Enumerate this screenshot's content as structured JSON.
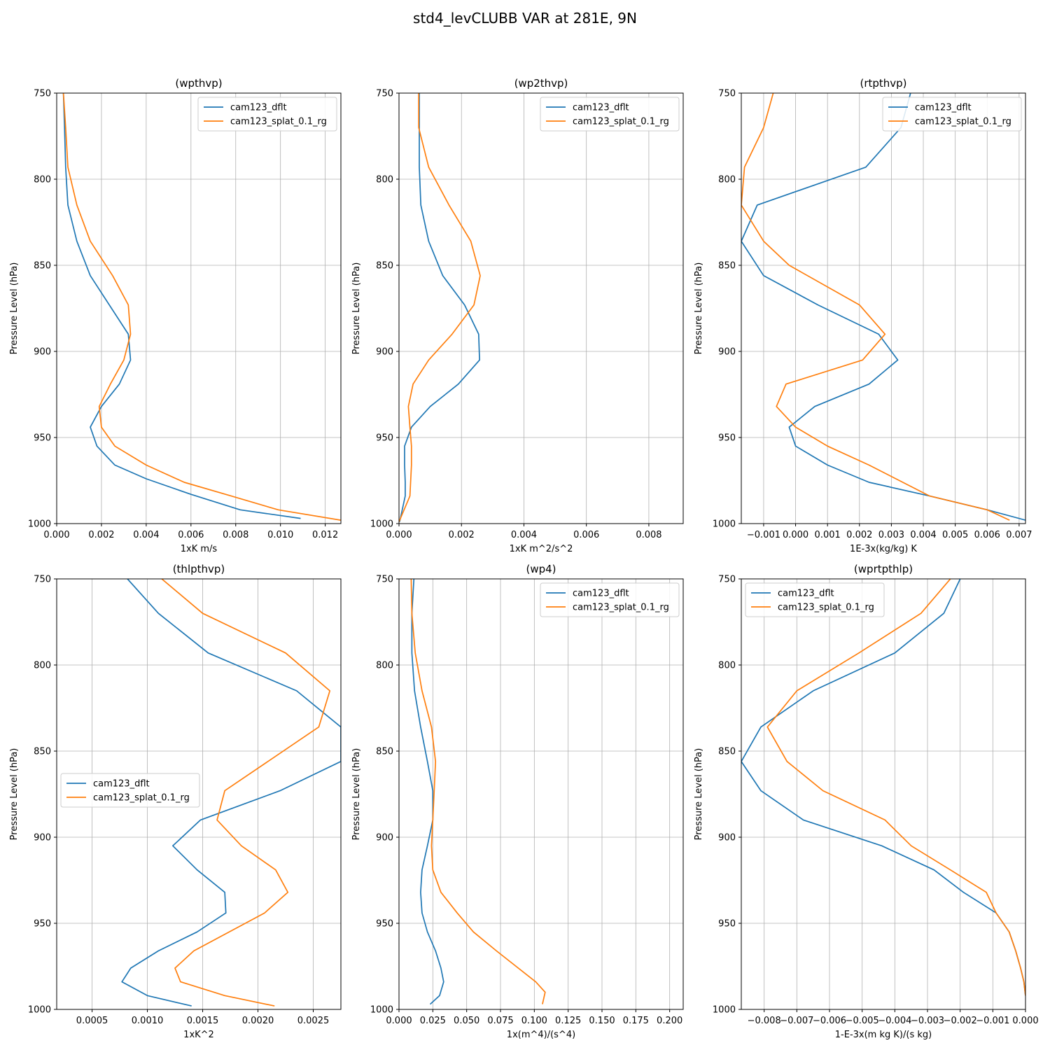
{
  "title": "std4_levCLUBB VAR at 281E, 9N",
  "colors": {
    "series0": "#1f77b4",
    "series1": "#ff7f0e",
    "grid": "#b0b0b0"
  },
  "chart_data": [
    {
      "type": "line",
      "title": "(wpthvp)",
      "xlabel": "1xK m/s",
      "ylabel": "Pressure Level (hPa)",
      "xlim": [
        0,
        0.0127
      ],
      "ylim": [
        1000,
        750
      ],
      "xticks": [
        0,
        0.002,
        0.004,
        0.006,
        0.008,
        0.01,
        0.012
      ],
      "xticklabels": [
        "0.000",
        "0.002",
        "0.004",
        "0.006",
        "0.008",
        "0.010",
        "0.012"
      ],
      "yticks": [
        750,
        800,
        850,
        900,
        950,
        1000
      ],
      "yticklabels": [
        "750",
        "800",
        "850",
        "900",
        "950",
        "1000"
      ],
      "grid": true,
      "legend": "upper right",
      "series": [
        {
          "name": "cam123_dflt",
          "x": [
            0.0003,
            0.00035,
            0.0004,
            0.0005,
            0.0009,
            0.0015,
            0.0032,
            0.0033,
            0.0028,
            0.002,
            0.0015,
            0.0018,
            0.0026,
            0.004,
            0.006,
            0.0082,
            0.0109
          ],
          "y": [
            750,
            770,
            793,
            815,
            836,
            856,
            890,
            905,
            919,
            932,
            944,
            955,
            966,
            974,
            983,
            992,
            997
          ]
        },
        {
          "name": "cam123_splat_0.1_rg",
          "x": [
            0.0003,
            0.0004,
            0.0005,
            0.0009,
            0.0015,
            0.0025,
            0.0032,
            0.0033,
            0.003,
            0.0024,
            0.0019,
            0.002,
            0.0026,
            0.004,
            0.0057,
            0.0078,
            0.0099,
            0.0127
          ],
          "y": [
            750,
            770,
            793,
            815,
            836,
            856,
            873,
            890,
            905,
            919,
            932,
            944,
            955,
            966,
            976,
            984,
            992,
            998
          ]
        }
      ]
    },
    {
      "type": "line",
      "title": "(wp2thvp)",
      "xlabel": "1xK m^2/s^2",
      "ylabel": "Pressure Level (hPa)",
      "xlim": [
        0,
        0.0091
      ],
      "ylim": [
        1000,
        750
      ],
      "xticks": [
        0,
        0.002,
        0.004,
        0.006,
        0.008
      ],
      "xticklabels": [
        "0.000",
        "0.002",
        "0.004",
        "0.006",
        "0.008"
      ],
      "yticks": [
        750,
        800,
        850,
        900,
        950,
        1000
      ],
      "yticklabels": [
        "750",
        "800",
        "850",
        "900",
        "950",
        "1000"
      ],
      "grid": true,
      "legend": "upper right",
      "series": [
        {
          "name": "cam123_dflt",
          "x": [
            0.00065,
            0.00065,
            0.00065,
            0.0007,
            0.00095,
            0.0014,
            0.0021,
            0.00255,
            0.00258,
            0.0019,
            0.001,
            0.0004,
            0.00018,
            0.00018,
            0.0002,
            0.0002,
            2e-05
          ],
          "y": [
            750,
            770,
            793,
            815,
            836,
            856,
            873,
            890,
            905,
            919,
            932,
            944,
            955,
            966,
            976,
            984,
            999
          ]
        },
        {
          "name": "cam123_splat_0.1_rg",
          "x": [
            0.00063,
            0.00063,
            0.00095,
            0.0016,
            0.0023,
            0.0026,
            0.0024,
            0.0017,
            0.00095,
            0.00045,
            0.0003,
            0.00035,
            0.0004,
            0.0004,
            0.00035,
            0.0
          ],
          "y": [
            750,
            770,
            793,
            815,
            836,
            856,
            873,
            890,
            905,
            919,
            932,
            944,
            955,
            966,
            984,
            999
          ]
        }
      ]
    },
    {
      "type": "line",
      "title": "(rtpthvp)",
      "xlabel": "1E-3x(kg/kg) K",
      "ylabel": "Pressure Level (hPa)",
      "xlim": [
        -0.0017,
        0.0072
      ],
      "ylim": [
        1000,
        750
      ],
      "xticks": [
        -0.001,
        0.0,
        0.001,
        0.002,
        0.003,
        0.004,
        0.005,
        0.006,
        0.007
      ],
      "xticklabels": [
        "−0.001",
        "0.000",
        "0.001",
        "0.002",
        "0.003",
        "0.004",
        "0.005",
        "0.006",
        "0.007"
      ],
      "yticks": [
        750,
        800,
        850,
        900,
        950,
        1000
      ],
      "yticklabels": [
        "750",
        "800",
        "850",
        "900",
        "950",
        "1000"
      ],
      "grid": true,
      "legend": "upper right",
      "series": [
        {
          "name": "cam123_dflt",
          "x": [
            0.0036,
            0.0033,
            0.0022,
            -0.0012,
            -0.0017,
            -0.001,
            0.0007,
            0.0026,
            0.0032,
            0.0023,
            0.0006,
            -0.0002,
            0.0,
            0.001,
            0.0023,
            0.0042,
            0.006,
            0.0072
          ],
          "y": [
            750,
            770,
            793,
            815,
            836,
            856,
            873,
            890,
            905,
            919,
            932,
            944,
            955,
            966,
            976,
            984,
            992,
            998
          ]
        },
        {
          "name": "cam123_splat_0.1_rg",
          "x": [
            -0.0007,
            -0.001,
            -0.0016,
            -0.0017,
            -0.001,
            -0.0002,
            0.002,
            0.0028,
            0.0021,
            -0.0003,
            -0.0006,
            0.0,
            0.001,
            0.0023,
            0.0042,
            0.006,
            0.0067
          ],
          "y": [
            750,
            770,
            793,
            815,
            836,
            850,
            873,
            890,
            905,
            919,
            932,
            944,
            955,
            966,
            984,
            992,
            998
          ]
        }
      ]
    },
    {
      "type": "line",
      "title": "(thlpthvp)",
      "xlabel": "1xK^2",
      "ylabel": "Pressure Level (hPa)",
      "xlim": [
        0.00018,
        0.00275
      ],
      "ylim": [
        1000,
        750
      ],
      "xticks": [
        0.0005,
        0.001,
        0.0015,
        0.002,
        0.0025
      ],
      "xticklabels": [
        "0.0005",
        "0.0010",
        "0.0015",
        "0.0020",
        "0.0025"
      ],
      "yticks": [
        750,
        800,
        850,
        900,
        950,
        1000
      ],
      "yticklabels": [
        "750",
        "800",
        "850",
        "900",
        "950",
        "1000"
      ],
      "grid": true,
      "legend": "center left",
      "series": [
        {
          "name": "cam123_dflt",
          "x": [
            0.00082,
            0.0011,
            0.00155,
            0.00235,
            0.00275,
            0.00275,
            0.0022,
            0.00148,
            0.00123,
            0.00145,
            0.0017,
            0.00171,
            0.00145,
            0.0011,
            0.00085,
            0.00077,
            0.001,
            0.0014
          ],
          "y": [
            750,
            770,
            793,
            815,
            836,
            856,
            873,
            890,
            905,
            919,
            932,
            944,
            955,
            966,
            976,
            984,
            992,
            998
          ]
        },
        {
          "name": "cam123_splat_0.1_rg",
          "x": [
            0.00113,
            0.0015,
            0.00225,
            0.00265,
            0.00255,
            0.0017,
            0.00163,
            0.00185,
            0.00216,
            0.00227,
            0.00206,
            0.00142,
            0.00125,
            0.0013,
            0.0017,
            0.00215
          ],
          "y": [
            750,
            770,
            793,
            815,
            836,
            873,
            890,
            905,
            919,
            932,
            944,
            966,
            976,
            984,
            992,
            998
          ]
        }
      ]
    },
    {
      "type": "line",
      "title": "(wp4)",
      "xlabel": "1x(m^4)/(s^4)",
      "ylabel": "Pressure Level (hPa)",
      "xlim": [
        0,
        0.21
      ],
      "ylim": [
        1000,
        750
      ],
      "xticks": [
        0,
        0.025,
        0.05,
        0.075,
        0.1,
        0.125,
        0.15,
        0.175,
        0.2
      ],
      "xticklabels": [
        "0.000",
        "0.025",
        "0.050",
        "0.075",
        "0.100",
        "0.125",
        "0.150",
        "0.175",
        "0.200"
      ],
      "yticks": [
        750,
        800,
        850,
        900,
        950,
        1000
      ],
      "yticklabels": [
        "750",
        "800",
        "850",
        "900",
        "950",
        "1000"
      ],
      "grid": true,
      "legend": "upper right",
      "series": [
        {
          "name": "cam123_dflt",
          "x": [
            0.011,
            0.0095,
            0.0095,
            0.0115,
            0.016,
            0.021,
            0.025,
            0.025,
            0.021,
            0.017,
            0.016,
            0.017,
            0.021,
            0.027,
            0.031,
            0.033,
            0.03,
            0.023
          ],
          "y": [
            750,
            770,
            793,
            815,
            836,
            856,
            873,
            890,
            905,
            919,
            932,
            944,
            955,
            966,
            976,
            984,
            992,
            997
          ]
        },
        {
          "name": "cam123_splat_0.1_rg",
          "x": [
            0.009,
            0.0095,
            0.012,
            0.017,
            0.024,
            0.027,
            0.026,
            0.025,
            0.024,
            0.025,
            0.031,
            0.043,
            0.055,
            0.072,
            0.101,
            0.108,
            0.106
          ],
          "y": [
            750,
            770,
            793,
            815,
            836,
            856,
            873,
            890,
            905,
            919,
            932,
            944,
            955,
            966,
            984,
            990,
            997
          ]
        }
      ]
    },
    {
      "type": "line",
      "title": "(wprtpthlp)",
      "xlabel": "1-E-3x(m kg K)/(s kg)",
      "ylabel": "Pressure Level (hPa)",
      "xlim": [
        -0.0087,
        0.0
      ],
      "ylim": [
        1000,
        750
      ],
      "xticks": [
        -0.008,
        -0.007,
        -0.006,
        -0.005,
        -0.004,
        -0.003,
        -0.002,
        -0.001,
        0.0
      ],
      "xticklabels": [
        "−0.008",
        "−0.007",
        "−0.006",
        "−0.005",
        "−0.004",
        "−0.003",
        "−0.002",
        "−0.001",
        "0.000"
      ],
      "yticks": [
        750,
        800,
        850,
        900,
        950,
        1000
      ],
      "yticklabels": [
        "750",
        "800",
        "850",
        "900",
        "950",
        "1000"
      ],
      "grid": true,
      "legend": "upper left",
      "series": [
        {
          "name": "cam123_dflt",
          "x": [
            -0.002,
            -0.0025,
            -0.004,
            -0.0065,
            -0.0081,
            -0.0087,
            -0.0081,
            -0.0068,
            -0.0044,
            -0.0028,
            -0.0019,
            -0.0009,
            -0.0005,
            -0.0003,
            -0.00015,
            -5e-05,
            0.0
          ],
          "y": [
            750,
            770,
            793,
            815,
            836,
            856,
            873,
            890,
            905,
            919,
            932,
            944,
            955,
            966,
            976,
            984,
            992
          ]
        },
        {
          "name": "cam123_splat_0.1_rg",
          "x": [
            -0.0023,
            -0.0032,
            -0.0051,
            -0.007,
            -0.0079,
            -0.0073,
            -0.0062,
            -0.0043,
            -0.0035,
            -0.0023,
            -0.0012,
            -0.0009,
            -0.0005,
            -0.0003,
            -0.00015,
            -5e-05,
            0.0
          ],
          "y": [
            750,
            770,
            793,
            815,
            836,
            856,
            873,
            890,
            905,
            919,
            932,
            944,
            955,
            966,
            976,
            984,
            992
          ]
        }
      ]
    }
  ]
}
